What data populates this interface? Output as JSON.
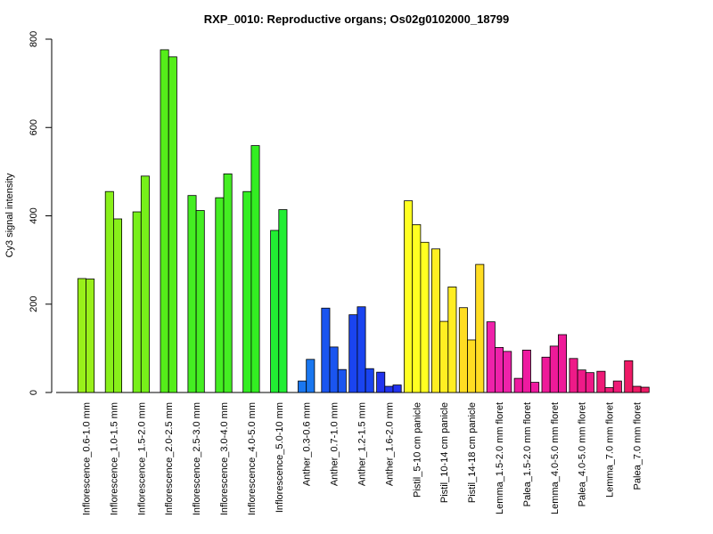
{
  "chart_data": {
    "type": "bar",
    "title": "RXP_0010: Reproductive organs; Os02g0102000_18799",
    "xlabel": "",
    "ylabel": "Cy3 signal intensity",
    "ylim": [
      0,
      800
    ],
    "yticks": [
      0,
      200,
      400,
      600,
      800
    ],
    "grid": false,
    "legend": "none",
    "groups": [
      {
        "label": "Inflorescence_0.6-1.0 mm",
        "color": "#99f01a",
        "values": [
          258,
          257
        ]
      },
      {
        "label": "Inflorescence_1.0-1.5 mm",
        "color": "#88f01a",
        "values": [
          455,
          393
        ]
      },
      {
        "label": "Inflorescence_1.5-2.0 mm",
        "color": "#77f01a",
        "values": [
          409,
          490
        ]
      },
      {
        "label": "Inflorescence_2.0-2.5 mm",
        "color": "#55ee1a",
        "values": [
          776,
          760
        ]
      },
      {
        "label": "Inflorescence_2.5-3.0 mm",
        "color": "#44ee22",
        "values": [
          446,
          412
        ]
      },
      {
        "label": "Inflorescence_3.0-4.0 mm",
        "color": "#44ee22",
        "values": [
          441,
          495
        ]
      },
      {
        "label": "Inflorescence_4.0-5.0 mm",
        "color": "#33ee22",
        "values": [
          455,
          559
        ]
      },
      {
        "label": "Inflorescence_5.0-10 mm",
        "color": "#22ee33",
        "values": [
          367,
          414
        ]
      },
      {
        "label": "Anther_0.3-0.6 mm",
        "color": "#1a77f0",
        "values": [
          26,
          75
        ]
      },
      {
        "label": "Anther_0.7-1.0 mm",
        "color": "#1a55f0",
        "values": [
          191,
          103,
          52
        ]
      },
      {
        "label": "Anther_1.2-1.5 mm",
        "color": "#1a44f0",
        "values": [
          176,
          194,
          54
        ]
      },
      {
        "label": "Anther_1.6-2.0 mm",
        "color": "#2233ee",
        "values": [
          46,
          14,
          17
        ]
      },
      {
        "label": "Pistil_5-10 cm panicle",
        "color": "#ffff22",
        "values": [
          434,
          380,
          340
        ]
      },
      {
        "label": "Pistil_10-14 cm panicle",
        "color": "#ffee22",
        "values": [
          325,
          161,
          239
        ]
      },
      {
        "label": "Pistil_14-18 cm panicle",
        "color": "#ffdd22",
        "values": [
          192,
          119,
          290
        ]
      },
      {
        "label": "Lemma_1.5-2.0 mm floret",
        "color": "#ee22aa",
        "values": [
          160,
          102,
          93
        ]
      },
      {
        "label": "Palea_1.5-2.0 mm floret",
        "color": "#ee1aa0",
        "values": [
          32,
          96,
          23
        ]
      },
      {
        "label": "Lemma_4.0-5.0 mm floret",
        "color": "#ee1a99",
        "values": [
          80,
          105,
          131
        ]
      },
      {
        "label": "Palea_4.0-5.0 mm floret",
        "color": "#ee1a88",
        "values": [
          77,
          51,
          45
        ]
      },
      {
        "label": "Lemma_7.0 mm floret",
        "color": "#ee1a77",
        "values": [
          48,
          11,
          26
        ]
      },
      {
        "label": "Palea_7.0 mm floret",
        "color": "#ee1a66",
        "values": [
          72,
          14,
          12
        ]
      }
    ]
  }
}
